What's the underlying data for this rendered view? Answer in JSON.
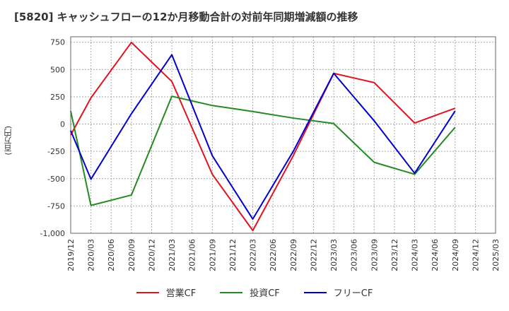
{
  "title": "[5820]  キャッシュフローの12か月移動合計の対前年同期増減額の推移",
  "y_unit_label": "(百万円)",
  "chart_data": {
    "type": "line",
    "title": "[5820]  キャッシュフローの12か月移動合計の対前年同期増減額の推移",
    "ylabel": "(百万円)",
    "ylim": [
      -1000,
      800
    ],
    "yticks": [
      -1000,
      -750,
      -500,
      -250,
      0,
      250,
      500,
      750
    ],
    "ytick_labels": [
      "-1,000",
      "-750",
      "-500",
      "-250",
      "0",
      "250",
      "500",
      "750"
    ],
    "x_ticks": [
      "2019/12",
      "2020/03",
      "2020/06",
      "2020/09",
      "2020/12",
      "2021/03",
      "2021/06",
      "2021/09",
      "2021/12",
      "2022/03",
      "2022/06",
      "2022/09",
      "2022/12",
      "2023/03",
      "2023/06",
      "2023/09",
      "2023/12",
      "2024/03",
      "2024/06",
      "2024/09",
      "2024/12",
      "2025/03"
    ],
    "grid": true,
    "legend_position": "bottom",
    "series": [
      {
        "name": "営業CF",
        "color": "#e0141e",
        "points": [
          {
            "x": "2019/12",
            "y": -100
          },
          {
            "x": "2020/03",
            "y": 240
          },
          {
            "x": "2020/09",
            "y": 748
          },
          {
            "x": "2021/03",
            "y": 390
          },
          {
            "x": "2021/09",
            "y": -460
          },
          {
            "x": "2022/03",
            "y": -975
          },
          {
            "x": "2022/09",
            "y": -290
          },
          {
            "x": "2023/03",
            "y": 465
          },
          {
            "x": "2023/09",
            "y": 380
          },
          {
            "x": "2024/03",
            "y": 10
          },
          {
            "x": "2024/09",
            "y": 145
          }
        ]
      },
      {
        "name": "投資CF",
        "color": "#228b22",
        "points": [
          {
            "x": "2019/12",
            "y": 120
          },
          {
            "x": "2020/03",
            "y": -745
          },
          {
            "x": "2020/09",
            "y": -650
          },
          {
            "x": "2021/03",
            "y": 255
          },
          {
            "x": "2021/09",
            "y": 170
          },
          {
            "x": "2022/03",
            "y": 115
          },
          {
            "x": "2022/09",
            "y": 55
          },
          {
            "x": "2023/03",
            "y": 5
          },
          {
            "x": "2023/09",
            "y": -350
          },
          {
            "x": "2024/03",
            "y": -460
          },
          {
            "x": "2024/09",
            "y": -30
          }
        ]
      },
      {
        "name": "フリーCF",
        "color": "#0000cd",
        "points": [
          {
            "x": "2019/12",
            "y": -60
          },
          {
            "x": "2020/03",
            "y": -505
          },
          {
            "x": "2020/09",
            "y": 95
          },
          {
            "x": "2021/03",
            "y": 635
          },
          {
            "x": "2021/09",
            "y": -290
          },
          {
            "x": "2022/03",
            "y": -870
          },
          {
            "x": "2022/09",
            "y": -250
          },
          {
            "x": "2023/03",
            "y": 465
          },
          {
            "x": "2023/09",
            "y": 30
          },
          {
            "x": "2024/03",
            "y": -450
          },
          {
            "x": "2024/09",
            "y": 120
          }
        ]
      }
    ]
  }
}
